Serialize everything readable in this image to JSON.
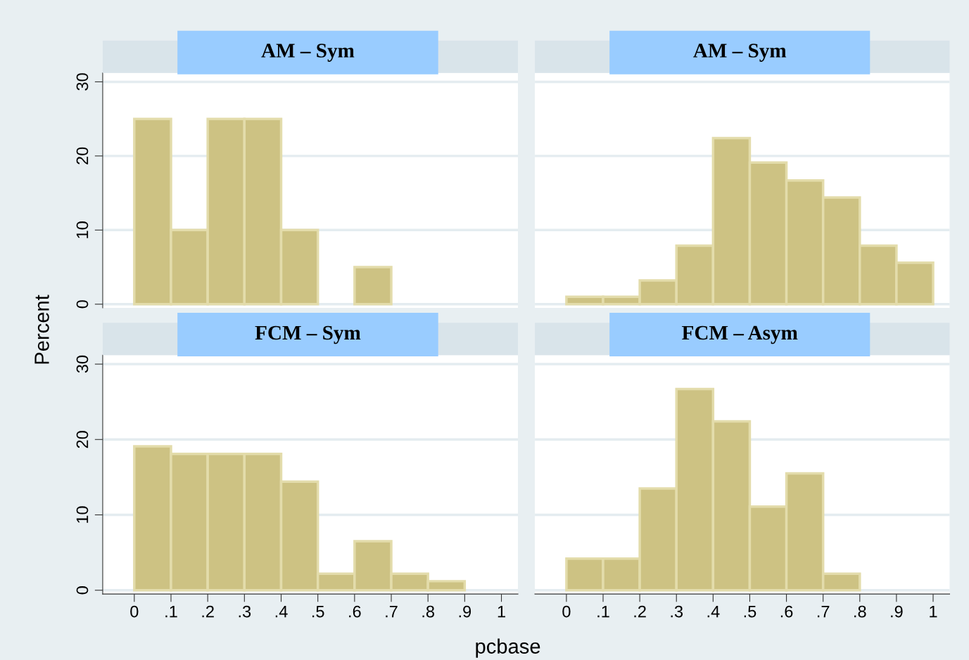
{
  "chart_data": [
    {
      "type": "histogram",
      "title": "AM – Sym",
      "ylabel": "Percent",
      "bins": [
        0,
        0.1,
        0.2,
        0.3,
        0.4,
        0.5,
        0.6,
        0.7
      ],
      "values": [
        25,
        10,
        25,
        25,
        10,
        0,
        5
      ],
      "color": "#cdc283",
      "xlim": [
        -0.086,
        1.045
      ],
      "ylim": [
        -0.5,
        31.2
      ],
      "yticks": [
        0,
        10,
        20,
        30
      ],
      "grid": "y",
      "tick_labels": "y"
    },
    {
      "type": "histogram",
      "title": "AM – Sym",
      "bins": [
        0,
        0.1,
        0.2,
        0.3,
        0.4,
        0.5,
        0.6,
        0.7,
        0.8,
        0.9,
        1.0
      ],
      "values": [
        1.0,
        1.0,
        3.2,
        7.9,
        22.4,
        19.1,
        16.7,
        14.4,
        7.9,
        5.6
      ],
      "color": "#cdc283",
      "xlim": [
        -0.086,
        1.045
      ],
      "ylim": [
        -0.5,
        31.2
      ],
      "yticks": [
        0,
        10,
        20,
        30
      ],
      "grid": "y",
      "tick_labels": false
    },
    {
      "type": "histogram",
      "title": "FCM – Sym",
      "bins": [
        0,
        0.1,
        0.2,
        0.3,
        0.4,
        0.5,
        0.6,
        0.7,
        0.8,
        0.9
      ],
      "values": [
        19.1,
        18.1,
        18.1,
        18.1,
        14.4,
        2.2,
        6.5,
        2.2,
        1.2
      ],
      "color": "#cdc283",
      "xlim": [
        -0.086,
        1.045
      ],
      "ylim": [
        -0.5,
        31.2
      ],
      "yticks": [
        0,
        10,
        20,
        30
      ],
      "xticks": [
        0,
        {
          "value": 0.1,
          "label": ".1"
        },
        {
          "value": 0.2,
          "label": ".2"
        },
        {
          "value": 0.3,
          "label": ".3"
        },
        {
          "value": 0.4,
          "label": ".4"
        },
        {
          "value": 0.5,
          "label": ".5"
        },
        {
          "value": 0.6,
          "label": ".6"
        },
        {
          "value": 0.7,
          "label": ".7"
        },
        {
          "value": 0.8,
          "label": ".8"
        },
        {
          "value": 0.9,
          "label": ".9"
        },
        1
      ],
      "grid": "y"
    },
    {
      "type": "histogram",
      "title": "FCM – Asym",
      "xlabel": "pcbase",
      "bins": [
        0,
        0.1,
        0.2,
        0.3,
        0.4,
        0.5,
        0.6,
        0.7,
        0.8
      ],
      "values": [
        4.2,
        4.2,
        13.5,
        26.7,
        22.4,
        11.1,
        15.5,
        2.2
      ],
      "color": "#cdc283",
      "xlim": [
        -0.086,
        1.045
      ],
      "ylim": [
        -0.5,
        31.2
      ],
      "yticks": [
        0,
        10,
        20,
        30
      ],
      "xticks": [
        0,
        {
          "value": 0.1,
          "label": ".1"
        },
        {
          "value": 0.2,
          "label": ".2"
        },
        {
          "value": 0.3,
          "label": ".3"
        },
        {
          "value": 0.4,
          "label": ".4"
        },
        {
          "value": 0.5,
          "label": ".5"
        },
        {
          "value": 0.6,
          "label": ".6"
        },
        {
          "value": 0.7,
          "label": ".7"
        },
        {
          "value": 0.8,
          "label": ".8"
        },
        {
          "value": 0.9,
          "label": ".9"
        },
        1
      ],
      "grid": "y",
      "tick_labels": "x"
    }
  ]
}
